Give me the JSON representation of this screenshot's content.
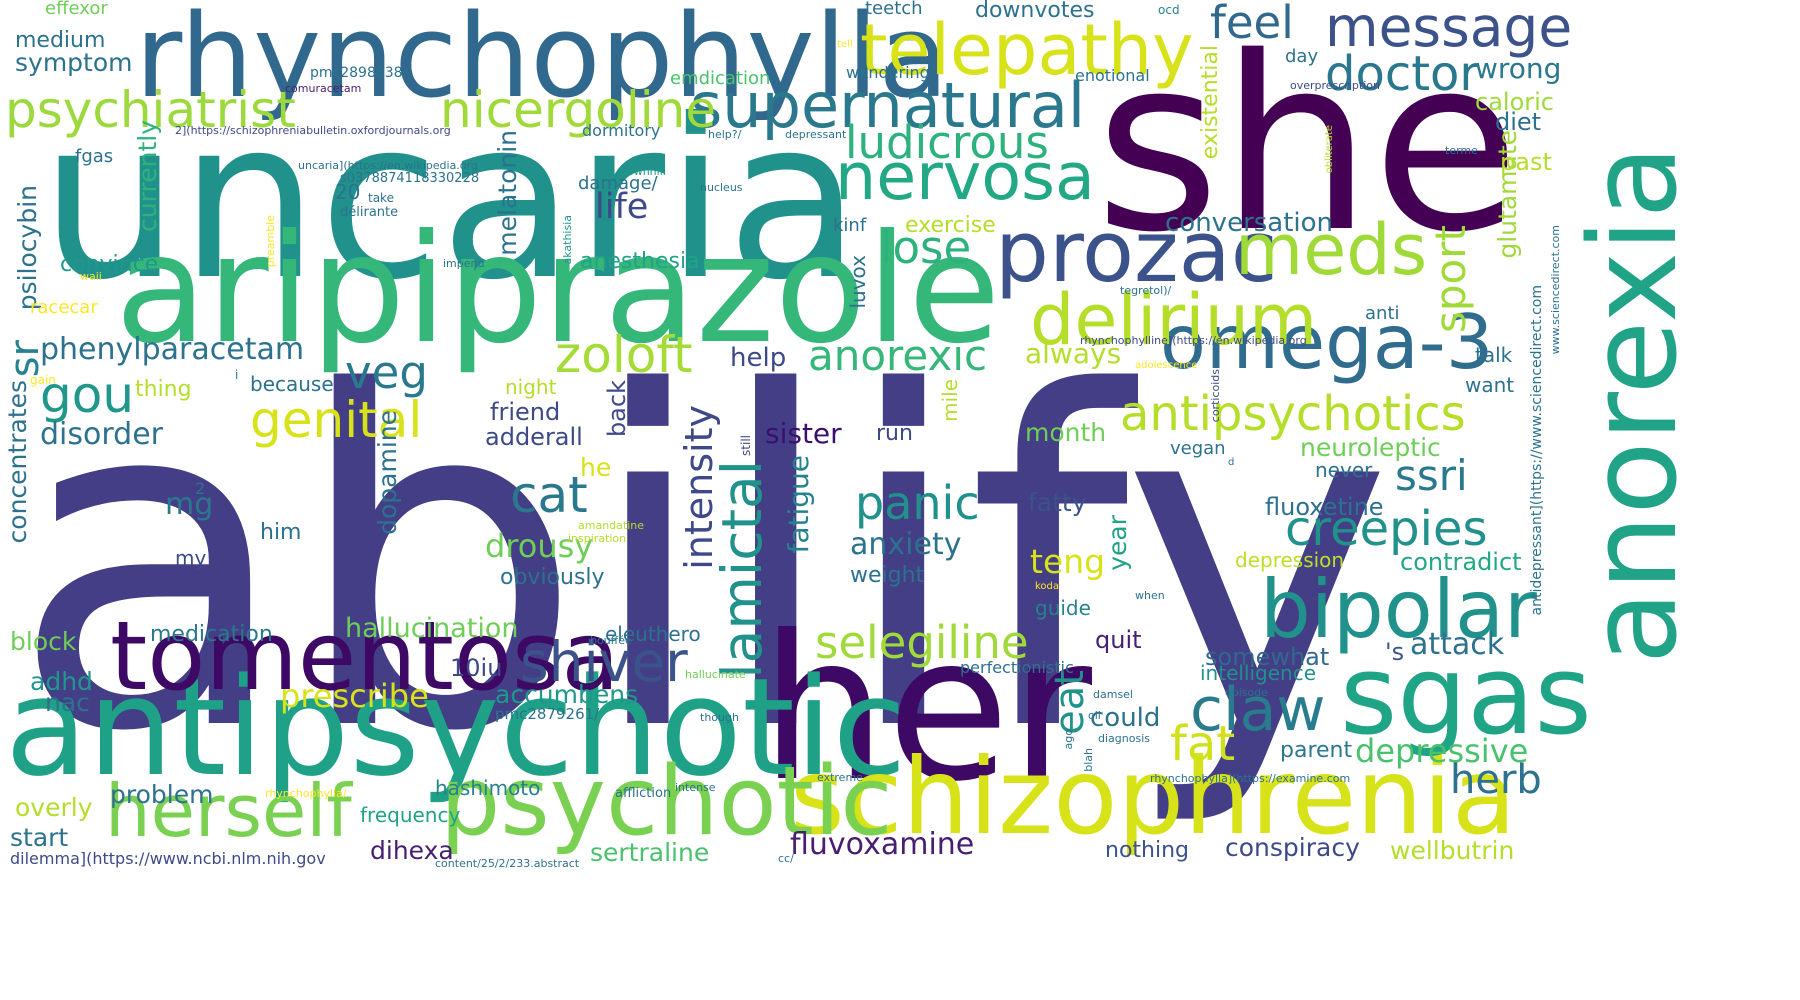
{
  "words": [
    {
      "text": "abilify",
      "color": "#433e85"
    },
    {
      "text": "uncaria",
      "color": "#21918c"
    },
    {
      "text": "she",
      "color": "#440154"
    },
    {
      "text": "her",
      "color": "#3d0965"
    },
    {
      "text": "aripiprazole",
      "color": "#35b779"
    },
    {
      "text": "rhynchophylla",
      "color": "#31688e"
    },
    {
      "text": "antipsychotic",
      "color": "#1fa187"
    },
    {
      "text": "schizophrenia",
      "color": "#d8e219"
    },
    {
      "text": "anorexia",
      "color": "#20a386"
    },
    {
      "text": "psychotic",
      "color": "#7ad151"
    },
    {
      "text": "tomentosa",
      "color": "#3d0965"
    },
    {
      "text": "sgas",
      "color": "#20a486"
    },
    {
      "text": "telepathy",
      "color": "#d8e219"
    },
    {
      "text": "supernatural",
      "color": "#2a788e"
    },
    {
      "text": "prozac",
      "color": "#3b528b"
    },
    {
      "text": "omega-3",
      "color": "#2f6c8e"
    },
    {
      "text": "bipolar",
      "color": "#21918c"
    },
    {
      "text": "meds",
      "color": "#a0da39"
    },
    {
      "text": "delirium",
      "color": "#b5de2b"
    },
    {
      "text": "nervosa",
      "color": "#22a884"
    },
    {
      "text": "psychiatrist",
      "color": "#9bd93c"
    },
    {
      "text": "nicergoline",
      "color": "#a0da39"
    },
    {
      "text": "message",
      "color": "#3b528b"
    },
    {
      "text": "doctor",
      "color": "#2a788e"
    },
    {
      "text": "herself",
      "color": "#7ad151"
    },
    {
      "text": "shiver",
      "color": "#3b528b"
    },
    {
      "text": "claw",
      "color": "#287c8e"
    },
    {
      "text": "antipsychotics",
      "color": "#b5de2b"
    },
    {
      "text": "selegiline",
      "color": "#a0da39"
    },
    {
      "text": "zoloft",
      "color": "#a5db36"
    },
    {
      "text": "anorexic",
      "color": "#35b779"
    },
    {
      "text": "ludicrous",
      "color": "#2db27d"
    },
    {
      "text": "creepies",
      "color": "#21918c"
    },
    {
      "text": "lamictal",
      "color": "#21918c"
    },
    {
      "text": "feel",
      "color": "#31688e"
    },
    {
      "text": "panic",
      "color": "#21918c"
    },
    {
      "text": "genital",
      "color": "#d8e219"
    },
    {
      "text": "fat",
      "color": "#d0e11c"
    },
    {
      "text": "cat",
      "color": "#2a788e"
    },
    {
      "text": "herb",
      "color": "#2c728e"
    },
    {
      "text": "lose",
      "color": "#2db27d"
    },
    {
      "text": "life",
      "color": "#3e4989"
    },
    {
      "text": "sport",
      "color": "#a0da39"
    },
    {
      "text": "veg",
      "color": "#2a788e"
    },
    {
      "text": "gou",
      "color": "#1f988b"
    },
    {
      "text": "ssri",
      "color": "#2a788e"
    },
    {
      "text": "phenylparacetam",
      "color": "#2c728e"
    },
    {
      "text": "eat",
      "color": "#20928c"
    },
    {
      "text": "sr",
      "color": "#26828e"
    },
    {
      "text": "depressive",
      "color": "#4ac16d"
    },
    {
      "text": "intensity",
      "color": "#3e4989"
    },
    {
      "text": "fluvoxamine",
      "color": "#481f70"
    },
    {
      "text": "sertraline",
      "color": "#4ac16d"
    },
    {
      "text": "drousy",
      "color": "#6ece58"
    },
    {
      "text": "anxiety",
      "color": "#2c728e"
    },
    {
      "text": "conversation",
      "color": "#2c728e"
    },
    {
      "text": "prescribe",
      "color": "#d8e219"
    },
    {
      "text": "hallucination",
      "color": "#6ece58"
    },
    {
      "text": "disorder",
      "color": "#2c728e"
    },
    {
      "text": "sister",
      "color": "#3b0f70"
    },
    {
      "text": "mg",
      "color": "#2a788e"
    },
    {
      "text": "fatigue",
      "color": "#26828e"
    },
    {
      "text": "dopamine",
      "color": "#2c728e"
    },
    {
      "text": "wrong",
      "color": "#2a788e"
    },
    {
      "text": "teng",
      "color": "#d8e219"
    },
    {
      "text": "diet",
      "color": "#2c728e"
    },
    {
      "text": "glutamate",
      "color": "#a0da39"
    },
    {
      "text": "caloric",
      "color": "#a0da39"
    },
    {
      "text": "past",
      "color": "#b5de2b"
    },
    {
      "text": "neuroleptic",
      "color": "#6ece58"
    },
    {
      "text": "adderall",
      "color": "#3e4989"
    },
    {
      "text": "friend",
      "color": "#3e4989"
    },
    {
      "text": "help",
      "color": "#3e4989"
    },
    {
      "text": "back",
      "color": "#3e4989"
    },
    {
      "text": "always",
      "color": "#b5de2b"
    },
    {
      "text": "month",
      "color": "#6ece58"
    },
    {
      "text": "fatty",
      "color": "#3b528b"
    },
    {
      "text": "fluoxetine",
      "color": "#2c728e"
    },
    {
      "text": "contradict",
      "color": "#22a884"
    },
    {
      "text": "depression",
      "color": "#bddf26"
    },
    {
      "text": "year",
      "color": "#20a386"
    },
    {
      "text": "guide",
      "color": "#26828e"
    },
    {
      "text": "quit",
      "color": "#481f70"
    },
    {
      "text": "somewhat",
      "color": "#31688e"
    },
    {
      "text": "'s",
      "color": "#3b528b"
    },
    {
      "text": "attack",
      "color": "#2c728e"
    },
    {
      "text": "intelligence",
      "color": "#21918c"
    },
    {
      "text": "could",
      "color": "#2c728e"
    },
    {
      "text": "parent",
      "color": "#2a788e"
    },
    {
      "text": "conspiracy",
      "color": "#3e4989"
    },
    {
      "text": "wellbutrin",
      "color": "#b5de2b"
    },
    {
      "text": "nothing",
      "color": "#3b528b"
    },
    {
      "text": "problem",
      "color": "#2c728e"
    },
    {
      "text": "overly",
      "color": "#b5de2b"
    },
    {
      "text": "start",
      "color": "#2c728e"
    },
    {
      "text": "frequency",
      "color": "#20a386"
    },
    {
      "text": "hashimoto",
      "color": "#26828e"
    },
    {
      "text": "dihexa",
      "color": "#481f70"
    },
    {
      "text": "accumbens",
      "color": "#1f988b"
    },
    {
      "text": "10iu",
      "color": "#3e4989"
    },
    {
      "text": "medication",
      "color": "#2a788e"
    },
    {
      "text": "eleuthero",
      "color": "#2c728e"
    },
    {
      "text": "block",
      "color": "#6ece58"
    },
    {
      "text": "adhd",
      "color": "#1f988b"
    },
    {
      "text": "nac",
      "color": "#2c728e"
    },
    {
      "text": "concentrates",
      "color": "#2c728e"
    },
    {
      "text": "psilocybin",
      "color": "#2c728e"
    },
    {
      "text": "currently",
      "color": "#2db27d"
    },
    {
      "text": "melatonin",
      "color": "#2c728e"
    },
    {
      "text": "convince",
      "color": "#1f988b"
    },
    {
      "text": "anesthesia",
      "color": "#20a386"
    },
    {
      "text": "exercise",
      "color": "#b5de2b"
    },
    {
      "text": "luvox",
      "color": "#2c728e"
    },
    {
      "text": "kinf",
      "color": "#2c728e"
    },
    {
      "text": "damage/",
      "color": "#2c728e"
    },
    {
      "text": "medium",
      "color": "#2c728e"
    },
    {
      "text": "symptom",
      "color": "#2c728e"
    },
    {
      "text": "effexor",
      "color": "#6ece58"
    },
    {
      "text": "teetch",
      "color": "#2c728e"
    },
    {
      "text": "downvotes",
      "color": "#2c728e"
    },
    {
      "text": "ocd",
      "color": "#26828e"
    },
    {
      "text": "day",
      "color": "#2c728e"
    },
    {
      "text": "tell",
      "color": "#fde725"
    },
    {
      "text": "emdication",
      "color": "#4ac16d"
    },
    {
      "text": "wkndering",
      "color": "#2c728e"
    },
    {
      "text": "enotional",
      "color": "#2c728e"
    },
    {
      "text": "existential",
      "color": "#b5de2b"
    },
    {
      "text": "overprescription",
      "color": "#3e4989"
    },
    {
      "text": "pmc2898838/",
      "color": "#2c728e"
    },
    {
      "text": "comuracetam",
      "color": "#481f70"
    },
    {
      "text": "2](https://schizophreniabulletin.oxfordjournals.org",
      "color": "#3e4989"
    },
    {
      "text": "fgas",
      "color": "#2c728e"
    },
    {
      "text": "dormitory",
      "color": "#2c728e"
    },
    {
      "text": "help?/",
      "color": "#2c728e"
    },
    {
      "text": "depressant",
      "color": "#2c728e"
    },
    {
      "text": "uncaria](https://en.wikipedia.org",
      "color": "#2c728e"
    },
    {
      "text": "terme",
      "color": "#2c728e"
    },
    {
      "text": "obliterate",
      "color": "#b5de2b"
    },
    {
      "text": "s0378874118330228",
      "color": "#2c728e"
    },
    {
      "text": "20",
      "color": "#2c728e"
    },
    {
      "text": "take",
      "color": "#2c728e"
    },
    {
      "text": "délirante",
      "color": "#2c728e"
    },
    {
      "text": "downhill",
      "color": "#1f988b"
    },
    {
      "text": "nucleus",
      "color": "#2c728e"
    },
    {
      "text": "preamble",
      "color": "#fde725"
    },
    {
      "text": "akathisia",
      "color": "#1f988b"
    },
    {
      "text": "impend",
      "color": "#2c728e"
    },
    {
      "text": "waii",
      "color": "#fde725"
    },
    {
      "text": "racecar",
      "color": "#fde725"
    },
    {
      "text": "www.sciencedirect.com",
      "color": "#2c728e"
    },
    {
      "text": "antidepressant](https://www.sciencedirect.com",
      "color": "#2c728e"
    },
    {
      "text": "anti",
      "color": "#2c728e"
    },
    {
      "text": "talk",
      "color": "#2c728e"
    },
    {
      "text": "want",
      "color": "#2c728e"
    },
    {
      "text": "rhynchophylline](https://en.wikipedia.org",
      "color": "#3e4989"
    },
    {
      "text": "tegretol)/",
      "color": "#2c728e"
    },
    {
      "text": "i",
      "color": "#2c728e"
    },
    {
      "text": "corticoids",
      "color": "#3e4989"
    },
    {
      "text": "gain",
      "color": "#fde725"
    },
    {
      "text": "thing",
      "color": "#b5de2b"
    },
    {
      "text": "because",
      "color": "#2c728e"
    },
    {
      "text": "night",
      "color": "#b5de2b"
    },
    {
      "text": "mile",
      "color": "#b5de2b"
    },
    {
      "text": "run",
      "color": "#3e4989"
    },
    {
      "text": "adolescence",
      "color": "#fde725"
    },
    {
      "text": "he",
      "color": "#d8e219"
    },
    {
      "text": "him",
      "color": "#2c728e"
    },
    {
      "text": "2",
      "color": "#2c728e"
    },
    {
      "text": "my",
      "color": "#3e4989"
    },
    {
      "text": "obviously",
      "color": "#2c728e"
    },
    {
      "text": "weight",
      "color": "#2c728e"
    },
    {
      "text": "still",
      "color": "#3e4989"
    },
    {
      "text": "vegan",
      "color": "#2c728e"
    },
    {
      "text": "d",
      "color": "#2c728e"
    },
    {
      "text": "never",
      "color": "#2c728e"
    },
    {
      "text": "amandatine",
      "color": "#b5de2b"
    },
    {
      "text": "inspiration",
      "color": "#b5de2b"
    },
    {
      "text": "koda",
      "color": "#fde725"
    },
    {
      "text": "when",
      "color": "#2c728e"
    },
    {
      "text": "bouffée",
      "color": "#2c728e"
    },
    {
      "text": "hallucinate",
      "color": "#6ece58"
    },
    {
      "text": "perfectionistic",
      "color": "#2c728e"
    },
    {
      "text": "pmc2879261/",
      "color": "#2c728e"
    },
    {
      "text": "damsel",
      "color": "#2c728e"
    },
    {
      "text": "episode",
      "color": "#2c728e"
    },
    {
      "text": "though",
      "color": "#2c728e"
    },
    {
      "text": "oil",
      "color": "#2c728e"
    },
    {
      "text": "ago",
      "color": "#2c728e"
    },
    {
      "text": "diagnosis",
      "color": "#2c728e"
    },
    {
      "text": "blah",
      "color": "#2c728e"
    },
    {
      "text": "extreme",
      "color": "#2c728e"
    },
    {
      "text": "rhynchophylla](https://examine.com",
      "color": "#2c728e"
    },
    {
      "text": "rhynchophylla/",
      "color": "#fde725"
    },
    {
      "text": "affliction",
      "color": "#2c728e"
    },
    {
      "text": "intense",
      "color": "#2c728e"
    },
    {
      "text": "dilemma](https://www.ncbi.nlm.nih.gov",
      "color": "#3e4989"
    },
    {
      "text": "content/25/2/233.abstract",
      "color": "#2c728e"
    },
    {
      "text": "cc/",
      "color": "#2c728e"
    }
  ]
}
